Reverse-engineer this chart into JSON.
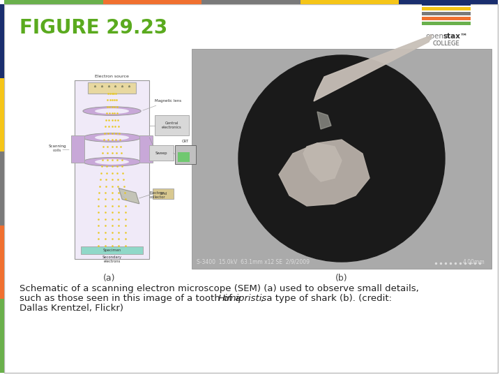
{
  "title": "FIGURE 29.23",
  "title_color": "#5aaa1e",
  "title_fontsize": 20,
  "bg_color": "#ffffff",
  "left_bar_colors": [
    "#1a2e6e",
    "#f5c518",
    "#7a7a7a",
    "#f07030",
    "#6ab04c"
  ],
  "top_bar_colors": [
    "#6ab04c",
    "#f07030",
    "#7a7a7a",
    "#f5c518",
    "#1a2e6e"
  ],
  "caption_color": "#222222",
  "caption_fontsize": 9.5,
  "logo_bar_colors": [
    "#6ab04c",
    "#f07030",
    "#7a7a7a",
    "#f5c518",
    "#1a2e6e"
  ],
  "label_a": "(a)",
  "label_b": "(b)"
}
